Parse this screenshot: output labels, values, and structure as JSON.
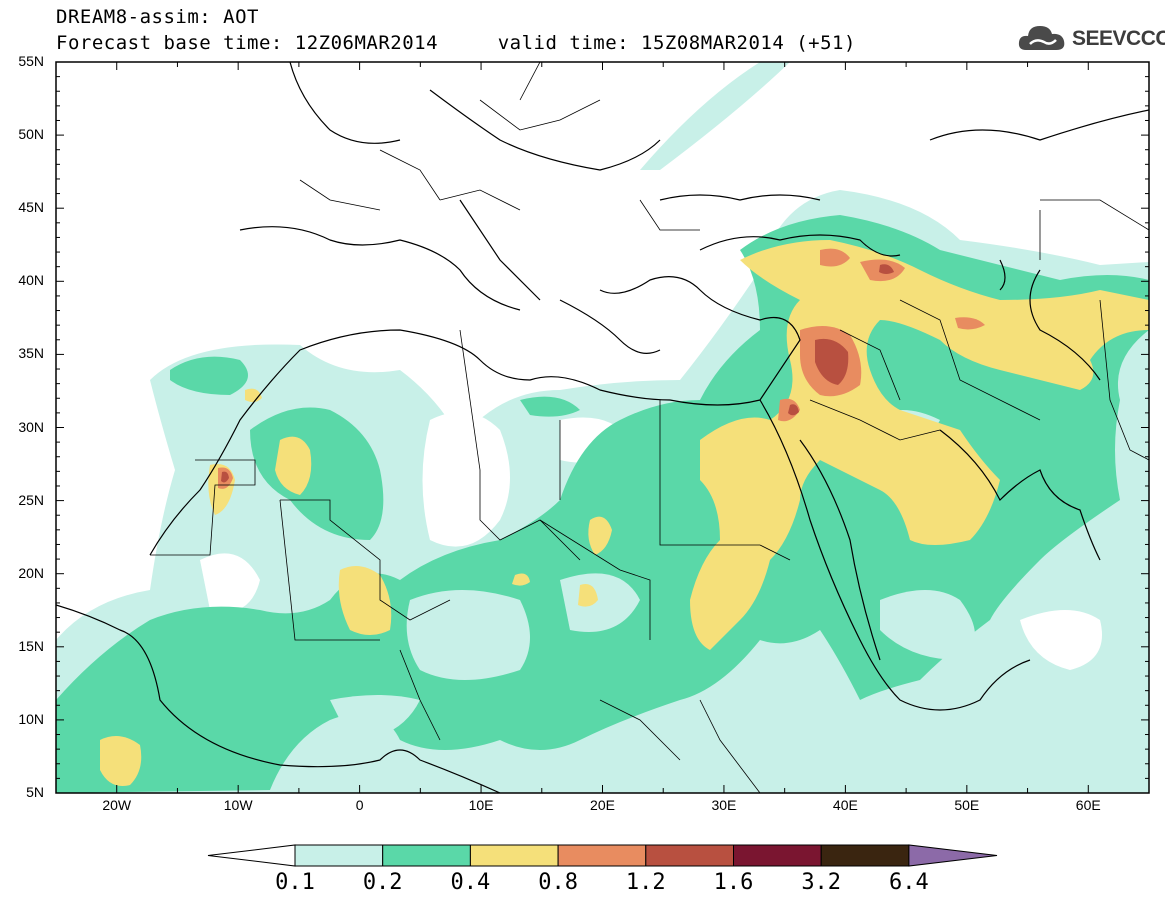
{
  "title": {
    "line1": "DREAM8-assim: AOT",
    "line2": "Forecast base time: 12Z06MAR2014     valid time: 15Z08MAR2014 (+51)"
  },
  "logo": {
    "text": "SEEVCCC",
    "icon": "cloud-icon"
  },
  "map": {
    "lat_labels": [
      "55N",
      "50N",
      "45N",
      "40N",
      "35N",
      "30N",
      "25N",
      "20N",
      "15N",
      "10N",
      "5N"
    ],
    "lon_labels": [
      "20W",
      "10W",
      "0",
      "10E",
      "20E",
      "30E",
      "40E",
      "50E",
      "60E"
    ],
    "lon_range": [
      -25,
      65
    ],
    "lat_range": [
      5,
      55
    ]
  },
  "colorbar": {
    "labels": [
      "0.1",
      "0.2",
      "0.4",
      "0.8",
      "1.2",
      "1.6",
      "3.2",
      "6.4"
    ],
    "colors": [
      "#ffffff",
      "#c8f0e8",
      "#5ad8a8",
      "#f5e07a",
      "#e88c60",
      "#b85040",
      "#7a1530",
      "#3a2510",
      "#8c6aa8"
    ]
  }
}
